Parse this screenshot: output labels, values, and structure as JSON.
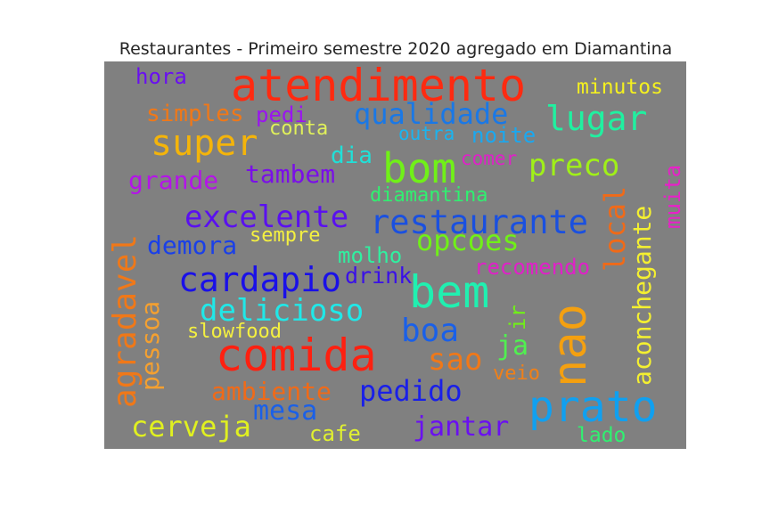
{
  "title": "Restaurantes - Primeiro semestre 2020 agregado em Diamantina",
  "words": [
    {
      "text": "hora",
      "color": "#6a0ff0"
    },
    {
      "text": "atendimento",
      "color": "#ff2a10"
    },
    {
      "text": "minutos",
      "color": "#f4f020"
    },
    {
      "text": "simples",
      "color": "#f07818"
    },
    {
      "text": "pedi",
      "color": "#9a14f0"
    },
    {
      "text": "qualidade",
      "color": "#1a78e6"
    },
    {
      "text": "lugar",
      "color": "#20f0a0"
    },
    {
      "text": "super",
      "color": "#f4b40a"
    },
    {
      "text": "conta",
      "color": "#e0f05a"
    },
    {
      "text": "outra",
      "color": "#1ab4f0"
    },
    {
      "text": "noite",
      "color": "#1aa8f0"
    },
    {
      "text": "dia",
      "color": "#20e0d8"
    },
    {
      "text": "bom",
      "color": "#70f018"
    },
    {
      "text": "comer",
      "color": "#e020c8"
    },
    {
      "text": "preco",
      "color": "#a0f018"
    },
    {
      "text": "muita",
      "color": "#e820c8"
    },
    {
      "text": "grande",
      "color": "#b414e8"
    },
    {
      "text": "tambem",
      "color": "#7a0fe8"
    },
    {
      "text": "diamantina",
      "color": "#30f070"
    },
    {
      "text": "local",
      "color": "#f06a18"
    },
    {
      "text": "aconchegante",
      "color": "#f4f030"
    },
    {
      "text": "excelente",
      "color": "#5a10f0"
    },
    {
      "text": "restaurante",
      "color": "#1a50e0"
    },
    {
      "text": "demora",
      "color": "#1a40e8"
    },
    {
      "text": "sempre",
      "color": "#f4f040"
    },
    {
      "text": "opcoes",
      "color": "#70f018"
    },
    {
      "text": "agradavel",
      "color": "#f07818"
    },
    {
      "text": "molho",
      "color": "#30f0a0"
    },
    {
      "text": "recomendo",
      "color": "#e020c8"
    },
    {
      "text": "cardapio",
      "color": "#1a10e8"
    },
    {
      "text": "drink",
      "color": "#3a10e8"
    },
    {
      "text": "bem",
      "color": "#20f0b0"
    },
    {
      "text": "pessoa",
      "color": "#f4a030"
    },
    {
      "text": "delicioso",
      "color": "#20e8e8"
    },
    {
      "text": "nao",
      "color": "#f4a010"
    },
    {
      "text": "slowfood",
      "color": "#f4f040"
    },
    {
      "text": "boa",
      "color": "#1a60e8"
    },
    {
      "text": "ir",
      "color": "#70f018"
    },
    {
      "text": "comida",
      "color": "#ff2010"
    },
    {
      "text": "ja",
      "color": "#50f050"
    },
    {
      "text": "sao",
      "color": "#f07818"
    },
    {
      "text": "veio",
      "color": "#f08018"
    },
    {
      "text": "ambiente",
      "color": "#f06a18"
    },
    {
      "text": "pedido",
      "color": "#1a20e8"
    },
    {
      "text": "prato",
      "color": "#10a0f0"
    },
    {
      "text": "mesa",
      "color": "#1a60e8"
    },
    {
      "text": "cerveja",
      "color": "#e0f020"
    },
    {
      "text": "jantar",
      "color": "#6a10f0"
    },
    {
      "text": "cafe",
      "color": "#e0f030"
    },
    {
      "text": "lado",
      "color": "#30f070"
    }
  ]
}
